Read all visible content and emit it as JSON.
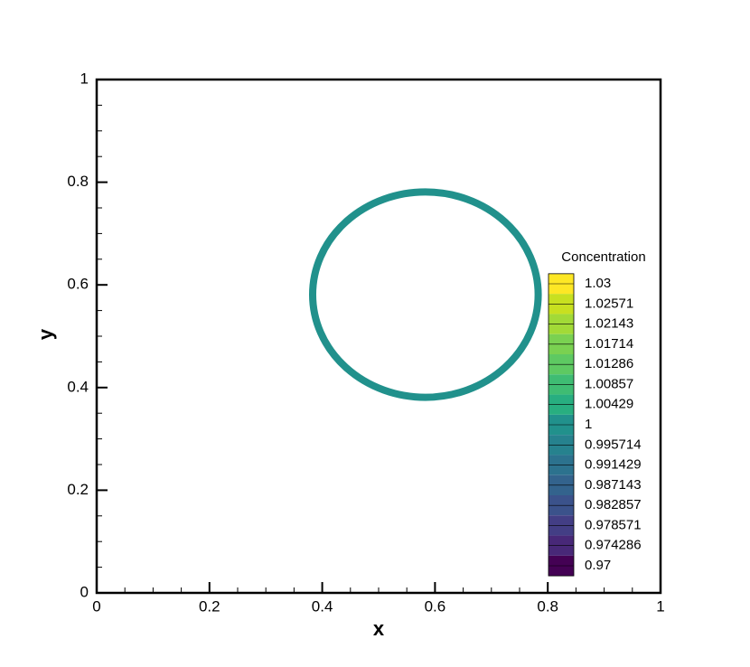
{
  "chart_data": {
    "type": "contour",
    "xlabel": "x",
    "ylabel": "y",
    "xlim": [
      0,
      1
    ],
    "ylim": [
      0,
      1
    ],
    "xticks": [
      0,
      0.2,
      0.4,
      0.6,
      0.8,
      1
    ],
    "yticks": [
      0,
      0.2,
      0.4,
      0.6,
      0.8,
      1
    ],
    "xminorticks": [
      0.05,
      0.1,
      0.15,
      0.25,
      0.3,
      0.35,
      0.45,
      0.5,
      0.55,
      0.65,
      0.7,
      0.75,
      0.85,
      0.9,
      0.95
    ],
    "yminorticks": [
      0.05,
      0.1,
      0.15,
      0.25,
      0.3,
      0.35,
      0.45,
      0.5,
      0.55,
      0.65,
      0.7,
      0.75,
      0.85,
      0.9,
      0.95
    ],
    "ring": {
      "cx": 0.583,
      "cy": 0.581,
      "r": 0.2,
      "value": 1,
      "color": "#21918c"
    },
    "colorbar": {
      "title": "Concentration",
      "levels": [
        1.03,
        1.02571,
        1.02143,
        1.01714,
        1.01286,
        1.00857,
        1.00429,
        1,
        0.995714,
        0.991429,
        0.987143,
        0.982857,
        0.978571,
        0.974286,
        0.97
      ],
      "colors": [
        "#fde725",
        "#c8e020",
        "#a2da37",
        "#7ad151",
        "#5ec962",
        "#3fbc73",
        "#28ae80",
        "#21918c",
        "#26828e",
        "#2c728e",
        "#33638d",
        "#3b528b",
        "#433e85",
        "#482878",
        "#440154"
      ]
    }
  }
}
